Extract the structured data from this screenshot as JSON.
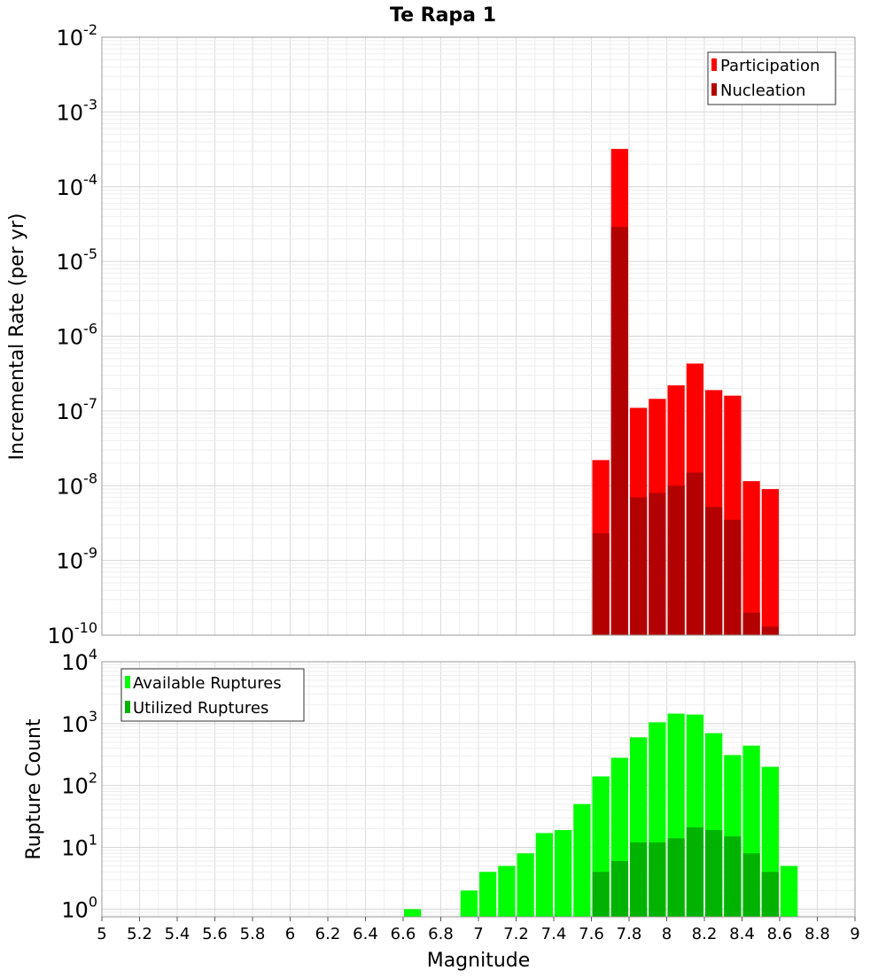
{
  "chart_data": [
    {
      "type": "bar",
      "title": "Te Rapa 1",
      "ylabel": "Incremental Rate (per yr)",
      "xlabel": "",
      "xlim": [
        5,
        9
      ],
      "ylim": [
        1e-10,
        0.01
      ],
      "yscale": "log",
      "grid": true,
      "legend": "top-right",
      "bin_width": 0.1,
      "yticks": [
        {
          "base": "10",
          "exp": "-10"
        },
        {
          "base": "10",
          "exp": "-9"
        },
        {
          "base": "10",
          "exp": "-8"
        },
        {
          "base": "10",
          "exp": "-7"
        },
        {
          "base": "10",
          "exp": "-6"
        },
        {
          "base": "10",
          "exp": "-5"
        },
        {
          "base": "10",
          "exp": "-4"
        },
        {
          "base": "10",
          "exp": "-3"
        },
        {
          "base": "10",
          "exp": "-2"
        }
      ],
      "series": [
        {
          "name": "Participation",
          "color": "#ff0000",
          "x": [
            7.65,
            7.75,
            7.85,
            7.95,
            8.05,
            8.15,
            8.25,
            8.35,
            8.45,
            8.55
          ],
          "values": [
            2.2e-08,
            0.00032,
            1.1e-07,
            1.45e-07,
            2.2e-07,
            4.3e-07,
            1.9e-07,
            1.6e-07,
            1.15e-08,
            9e-09
          ]
        },
        {
          "name": "Nucleation",
          "color": "#b30000",
          "x": [
            7.65,
            7.75,
            7.85,
            7.95,
            8.05,
            8.15,
            8.25,
            8.35,
            8.45,
            8.55
          ],
          "values": [
            2.3e-09,
            2.9e-05,
            7e-09,
            8e-09,
            1e-08,
            1.5e-08,
            5.2e-09,
            3.5e-09,
            2e-10,
            1.3e-10
          ]
        }
      ]
    },
    {
      "type": "bar",
      "title": "",
      "ylabel": "Rupture Count",
      "xlabel": "Magnitude",
      "xlim": [
        5,
        9
      ],
      "ylim": [
        0.75,
        10000
      ],
      "yscale": "log",
      "grid": true,
      "legend": "top-left",
      "bin_width": 0.1,
      "xticks": [
        "5",
        "5.2",
        "5.4",
        "5.6",
        "5.8",
        "6",
        "6.2",
        "6.4",
        "6.6",
        "6.8",
        "7",
        "7.2",
        "7.4",
        "7.6",
        "7.8",
        "8",
        "8.2",
        "8.4",
        "8.6",
        "8.8",
        "9"
      ],
      "yticks": [
        {
          "base": "10",
          "exp": "0"
        },
        {
          "base": "10",
          "exp": "1"
        },
        {
          "base": "10",
          "exp": "2"
        },
        {
          "base": "10",
          "exp": "3"
        },
        {
          "base": "10",
          "exp": "4"
        }
      ],
      "series": [
        {
          "name": "Available Ruptures",
          "color": "#00ff00",
          "x": [
            6.65,
            6.95,
            7.05,
            7.15,
            7.25,
            7.35,
            7.45,
            7.55,
            7.65,
            7.75,
            7.85,
            7.95,
            8.05,
            8.15,
            8.25,
            8.35,
            8.45,
            8.55,
            8.65
          ],
          "values": [
            1,
            2,
            4,
            5,
            8,
            17,
            19,
            50,
            140,
            280,
            600,
            1050,
            1450,
            1400,
            700,
            310,
            440,
            200,
            5
          ]
        },
        {
          "name": "Utilized Ruptures",
          "color": "#00b300",
          "x": [
            7.65,
            7.75,
            7.85,
            7.95,
            8.05,
            8.15,
            8.25,
            8.35,
            8.45,
            8.55
          ],
          "values": [
            4,
            6,
            12,
            12,
            14,
            21,
            19,
            15,
            8,
            4
          ]
        }
      ]
    }
  ]
}
